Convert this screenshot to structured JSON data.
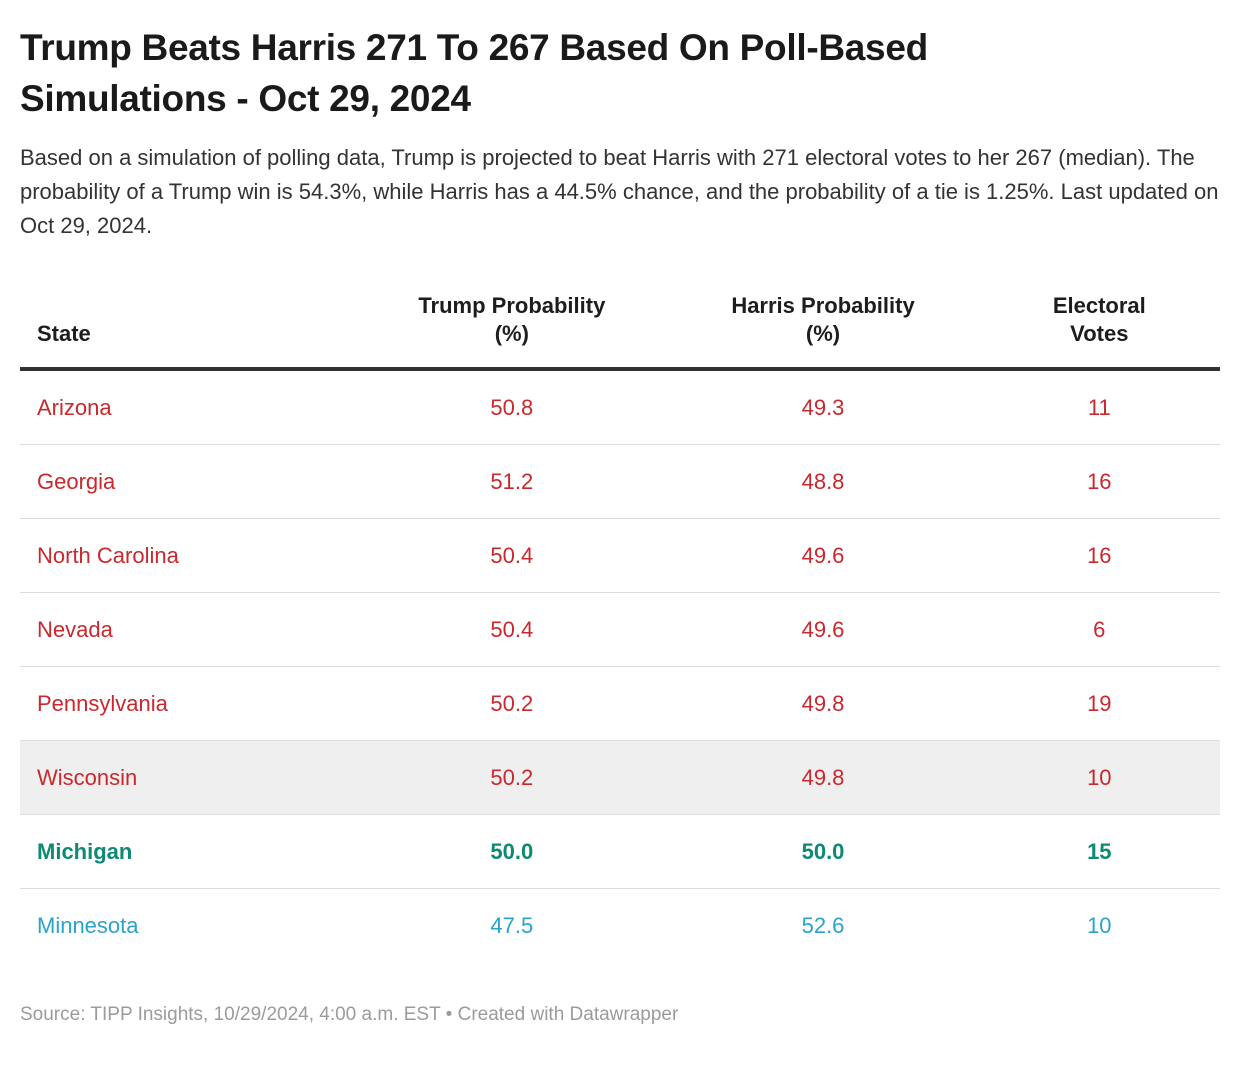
{
  "header": {
    "title_lines": [
      "Trump Beats Harris 271 To 267 Based On Poll-Based",
      "Simulations - Oct 29, 2024"
    ],
    "description": "Based on a simulation of polling data, Trump is projected to beat Harris with 271 electoral votes to her 267 (median). The probability of a Trump win is 54.3%, while Harris has a 44.5% chance, and the probability of a tie is 1.25%. Last updated on Oct 29, 2024."
  },
  "table": {
    "columns": [
      {
        "lines": [
          "State"
        ]
      },
      {
        "lines": [
          "Trump Probability",
          "(%)"
        ]
      },
      {
        "lines": [
          "Harris Probability",
          "(%)"
        ]
      },
      {
        "lines": [
          "Electoral",
          "Votes"
        ]
      }
    ]
  },
  "chart_data": {
    "type": "table",
    "title": "Trump Beats Harris 271 To 267 Based On Poll-Based Simulations - Oct 29, 2024",
    "columns": [
      "State",
      "Trump Probability (%)",
      "Harris Probability (%)",
      "Electoral Votes"
    ],
    "rows": [
      {
        "state": "Arizona",
        "trump_pct": "50.8",
        "harris_pct": "49.3",
        "electoral_votes": "11",
        "color": "red",
        "bold": false,
        "highlighted": false
      },
      {
        "state": "Georgia",
        "trump_pct": "51.2",
        "harris_pct": "48.8",
        "electoral_votes": "16",
        "color": "red",
        "bold": false,
        "highlighted": false
      },
      {
        "state": "North Carolina",
        "trump_pct": "50.4",
        "harris_pct": "49.6",
        "electoral_votes": "16",
        "color": "red",
        "bold": false,
        "highlighted": false
      },
      {
        "state": "Nevada",
        "trump_pct": "50.4",
        "harris_pct": "49.6",
        "electoral_votes": "6",
        "color": "red",
        "bold": false,
        "highlighted": false
      },
      {
        "state": "Pennsylvania",
        "trump_pct": "50.2",
        "harris_pct": "49.8",
        "electoral_votes": "19",
        "color": "red",
        "bold": false,
        "highlighted": false
      },
      {
        "state": "Wisconsin",
        "trump_pct": "50.2",
        "harris_pct": "49.8",
        "electoral_votes": "10",
        "color": "red",
        "bold": false,
        "highlighted": true
      },
      {
        "state": "Michigan",
        "trump_pct": "50.0",
        "harris_pct": "50.0",
        "electoral_votes": "15",
        "color": "green",
        "bold": true,
        "highlighted": false
      },
      {
        "state": "Minnesota",
        "trump_pct": "47.5",
        "harris_pct": "52.6",
        "electoral_votes": "10",
        "color": "blue",
        "bold": false,
        "highlighted": false
      }
    ]
  },
  "footer": {
    "source": "Source: TIPP Insights, 10/29/2024, 4:00 a.m. EST",
    "separator": "•",
    "attribution": "Created with Datawrapper"
  },
  "colors": {
    "trump_lead_red": "#c9282d",
    "tie_green": "#0e8a74",
    "harris_lead_blue": "#29a3cc",
    "highlight_row_bg": "#efefef",
    "heading_text": "#1a1a1a",
    "header_rule": "#313131",
    "row_divider": "#dddddd",
    "footer_text": "#9b9b9b"
  }
}
